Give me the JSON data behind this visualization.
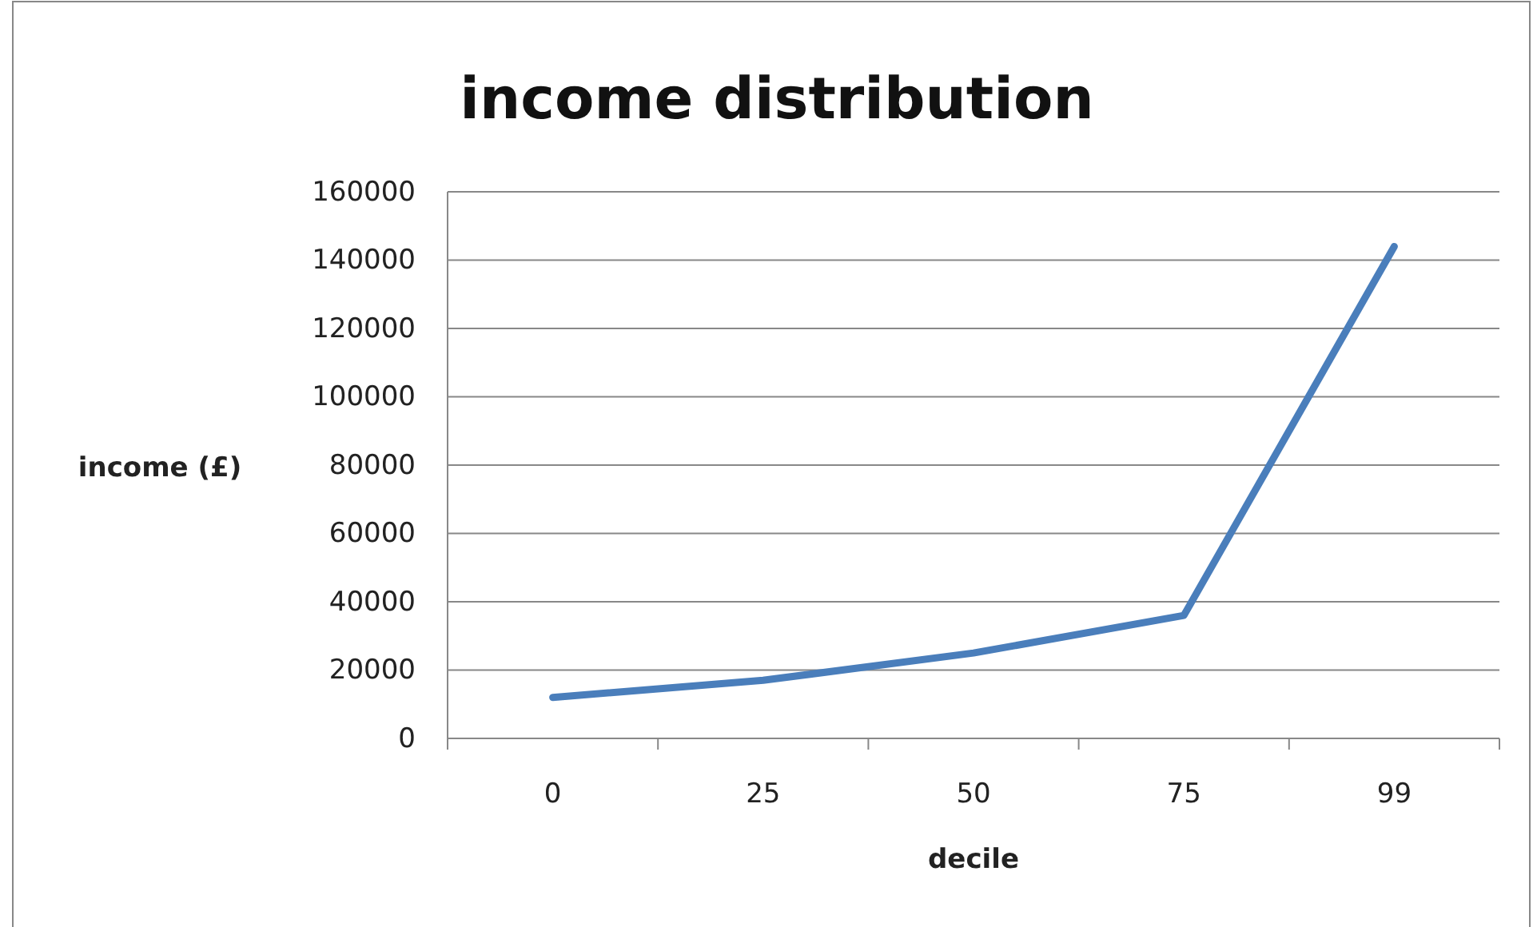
{
  "chart_data": {
    "type": "line",
    "title": "income distribution",
    "xlabel": "decile",
    "ylabel": "income (£)",
    "categories": [
      "0",
      "25",
      "50",
      "75",
      "99"
    ],
    "series": [
      {
        "color": "#4a7ebb",
        "values": [
          12000,
          17000,
          25000,
          36000,
          144000
        ]
      }
    ],
    "ylim": [
      0,
      160000
    ],
    "yticks": [
      0,
      20000,
      40000,
      60000,
      80000,
      100000,
      120000,
      140000,
      160000
    ],
    "grid": "y",
    "marker": "none",
    "line_style": "solid"
  }
}
